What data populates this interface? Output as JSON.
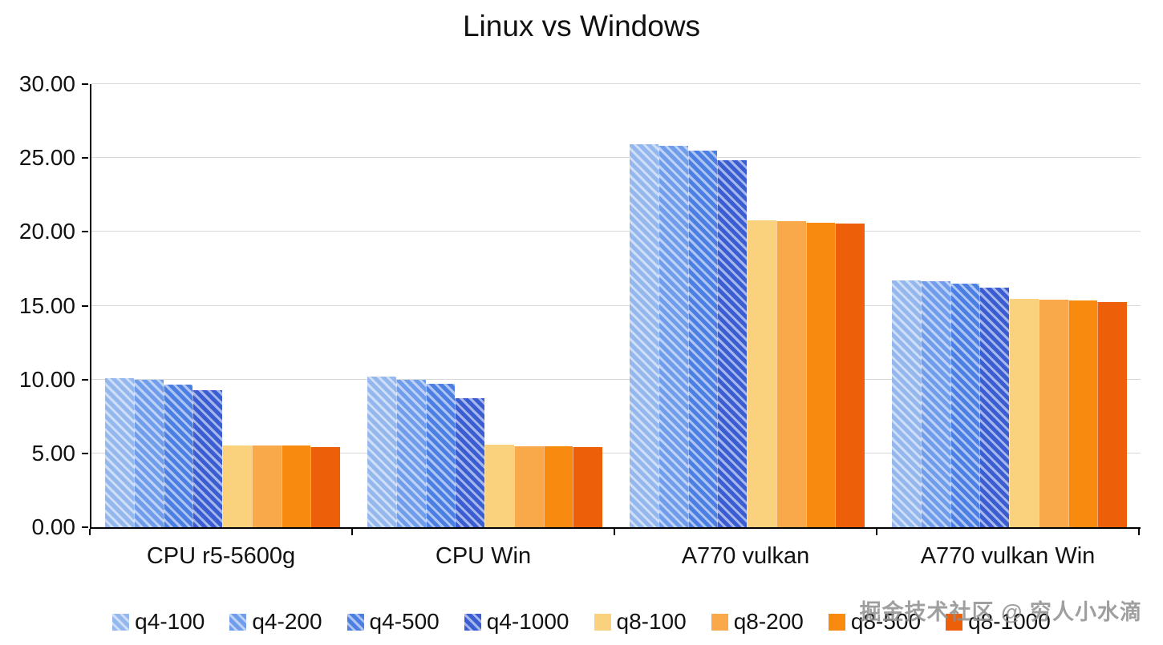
{
  "title": "Linux vs Windows",
  "watermark": "掘金技术社区 @ 穷人小水滴",
  "chart_data": {
    "type": "bar",
    "title": "Linux vs Windows",
    "categories": [
      "CPU r5-5600g",
      "CPU Win",
      "A770 vulkan",
      "A770 vulkan Win"
    ],
    "series": [
      {
        "name": "q4-100",
        "color": "#94b7ee",
        "hatch": true,
        "values": [
          10.1,
          10.2,
          25.95,
          16.7
        ]
      },
      {
        "name": "q4-200",
        "color": "#6f9ceb",
        "hatch": true,
        "values": [
          10.0,
          10.0,
          25.8,
          16.65
        ]
      },
      {
        "name": "q4-500",
        "color": "#4b7fe3",
        "hatch": true,
        "values": [
          9.65,
          9.7,
          25.5,
          16.5
        ]
      },
      {
        "name": "q4-1000",
        "color": "#3a5ed2",
        "hatch": true,
        "values": [
          9.3,
          8.75,
          24.85,
          16.2
        ]
      },
      {
        "name": "q8-100",
        "color": "#fad27e",
        "hatch": false,
        "values": [
          5.55,
          5.6,
          20.8,
          15.45
        ]
      },
      {
        "name": "q8-200",
        "color": "#f9a84a",
        "hatch": false,
        "values": [
          5.55,
          5.5,
          20.75,
          15.4
        ]
      },
      {
        "name": "q8-500",
        "color": "#f98a10",
        "hatch": false,
        "values": [
          5.55,
          5.5,
          20.6,
          15.35
        ]
      },
      {
        "name": "q8-1000",
        "color": "#ee5f0a",
        "hatch": false,
        "values": [
          5.45,
          5.4,
          20.55,
          15.25
        ]
      }
    ],
    "ylim": [
      0,
      30
    ],
    "ytick_step": 5,
    "ytick_labels": [
      "0.00",
      "5.00",
      "10.00",
      "15.00",
      "20.00",
      "25.00",
      "30.00"
    ],
    "grid": true,
    "legend_position": "bottom"
  }
}
